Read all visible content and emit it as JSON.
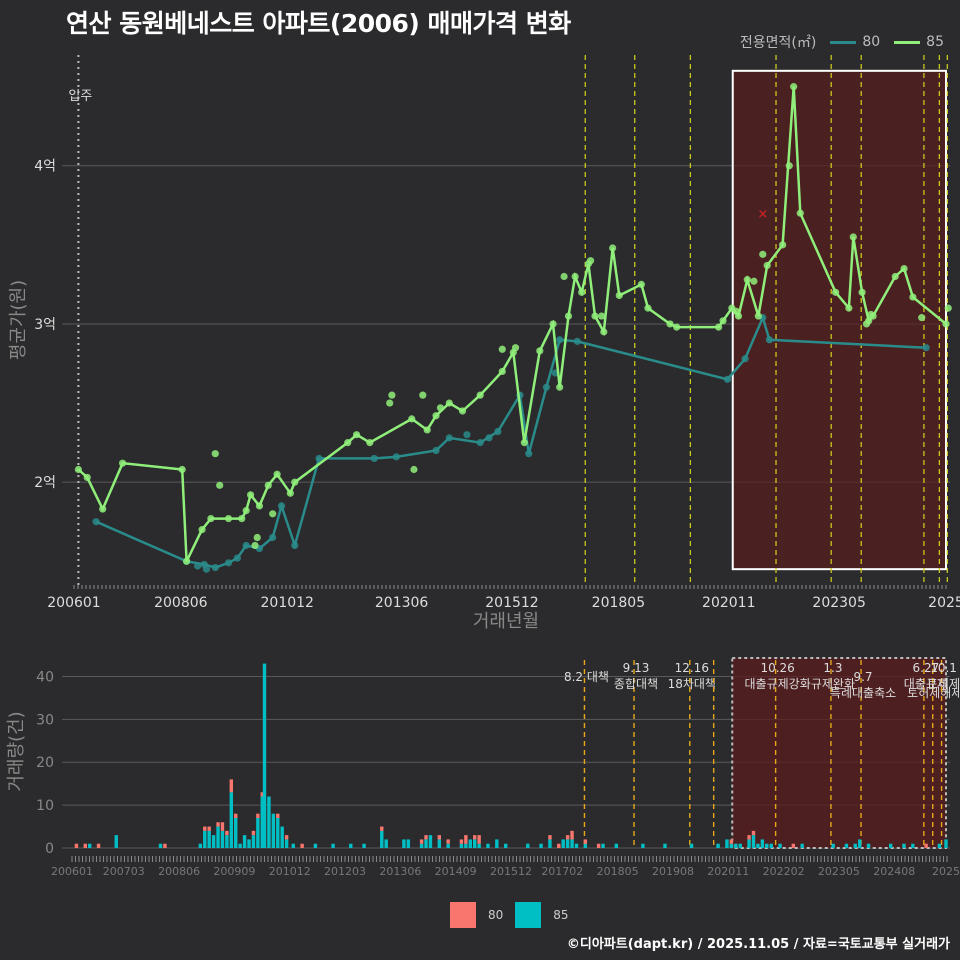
{
  "title": "연산 동원베네스트 아파트(2006) 매매가격 변화",
  "legend": {
    "label": "전용면적(㎡)",
    "items": [
      {
        "name": "80",
        "color": "#2a8b8b"
      },
      {
        "name": "85",
        "color": "#90ee7a"
      }
    ]
  },
  "bar_legend": {
    "items": [
      {
        "name": "80",
        "color": "#f8766d"
      },
      {
        "name": "85",
        "color": "#00bfc4"
      }
    ]
  },
  "footer": "©디아파트(dapt.kr) / 2025.11.05 / 자료=국토교통부 실거래가",
  "chart_data": [
    {
      "type": "line",
      "name": "price",
      "xlabel": "거래년월",
      "ylabel": "평균가(원)",
      "x_range": [
        2006.0,
        2025.75
      ],
      "ylim": [
        1.35,
        4.7
      ],
      "y_ticks": [
        {
          "v": 2,
          "label": "2억"
        },
        {
          "v": 3,
          "label": "3억"
        },
        {
          "v": 4,
          "label": "4억"
        }
      ],
      "x_ticks": [
        {
          "v": 2006.0,
          "label": "200601"
        },
        {
          "v": 2008.42,
          "label": "200806"
        },
        {
          "v": 2010.83,
          "label": "201012"
        },
        {
          "v": 2013.42,
          "label": "201306"
        },
        {
          "v": 2015.92,
          "label": "201512"
        },
        {
          "v": 2018.33,
          "label": "201805"
        },
        {
          "v": 2020.83,
          "label": "202011"
        },
        {
          "v": 2023.33,
          "label": "202305"
        },
        {
          "v": 2025.75,
          "label": "2025"
        }
      ],
      "annotation": {
        "label": "입주",
        "x": 2006.1
      },
      "policy_lines": [
        2017.58,
        2018.7,
        2019.96,
        2021.9,
        2023.15,
        2023.83,
        2025.25,
        2025.6,
        2025.78
      ],
      "highlight_range": [
        2020.92,
        2025.75
      ],
      "highlight_y": [
        1.45,
        4.6
      ],
      "marker": {
        "x": 2021.6,
        "y": 3.7,
        "symbol": "×"
      },
      "series": [
        {
          "name": "80",
          "color": "#2a8b8b",
          "points": [
            [
              2006.5,
              1.75
            ],
            [
              2008.55,
              1.5
            ],
            [
              2008.95,
              1.48
            ],
            [
              2009.2,
              1.46
            ],
            [
              2009.5,
              1.49
            ],
            [
              2009.7,
              1.52
            ],
            [
              2009.9,
              1.6
            ],
            [
              2010.2,
              1.58
            ],
            [
              2010.5,
              1.65
            ],
            [
              2010.7,
              1.85
            ],
            [
              2011.0,
              1.6
            ],
            [
              2011.55,
              2.15
            ],
            [
              2012.8,
              2.15
            ],
            [
              2013.3,
              2.16
            ],
            [
              2014.2,
              2.2
            ],
            [
              2014.5,
              2.28
            ],
            [
              2015.2,
              2.25
            ],
            [
              2015.6,
              2.32
            ],
            [
              2016.1,
              2.55
            ],
            [
              2016.3,
              2.18
            ],
            [
              2016.7,
              2.6
            ],
            [
              2017.0,
              2.9
            ],
            [
              2017.4,
              2.89
            ],
            [
              2020.8,
              2.65
            ],
            [
              2021.2,
              2.78
            ],
            [
              2021.6,
              3.04
            ],
            [
              2021.75,
              2.9
            ],
            [
              2025.3,
              2.85
            ]
          ],
          "scatter": [
            [
              2016.9,
              2.69
            ],
            [
              2015.4,
              2.28
            ],
            [
              2014.9,
              2.3
            ],
            [
              2009.0,
              1.45
            ],
            [
              2008.8,
              1.47
            ]
          ]
        },
        {
          "name": "85",
          "color": "#90ee7a",
          "points": [
            [
              2006.1,
              2.08
            ],
            [
              2006.3,
              2.03
            ],
            [
              2006.65,
              1.83
            ],
            [
              2007.1,
              2.12
            ],
            [
              2008.45,
              2.08
            ],
            [
              2008.55,
              1.5
            ],
            [
              2008.9,
              1.7
            ],
            [
              2009.1,
              1.77
            ],
            [
              2009.5,
              1.77
            ],
            [
              2009.8,
              1.77
            ],
            [
              2009.9,
              1.82
            ],
            [
              2010.0,
              1.92
            ],
            [
              2010.2,
              1.85
            ],
            [
              2010.4,
              1.98
            ],
            [
              2010.6,
              2.05
            ],
            [
              2010.9,
              1.93
            ],
            [
              2011.0,
              2.0
            ],
            [
              2012.2,
              2.25
            ],
            [
              2012.4,
              2.3
            ],
            [
              2012.7,
              2.25
            ],
            [
              2013.65,
              2.4
            ],
            [
              2014.0,
              2.33
            ],
            [
              2014.2,
              2.42
            ],
            [
              2014.5,
              2.5
            ],
            [
              2014.8,
              2.45
            ],
            [
              2015.2,
              2.55
            ],
            [
              2015.7,
              2.7
            ],
            [
              2015.95,
              2.82
            ],
            [
              2016.2,
              2.25
            ],
            [
              2016.55,
              2.83
            ],
            [
              2016.85,
              3.0
            ],
            [
              2017.0,
              2.6
            ],
            [
              2017.2,
              3.05
            ],
            [
              2017.35,
              3.3
            ],
            [
              2017.5,
              3.2
            ],
            [
              2017.65,
              3.38
            ],
            [
              2017.8,
              3.05
            ],
            [
              2018.0,
              2.95
            ],
            [
              2018.2,
              3.48
            ],
            [
              2018.35,
              3.18
            ],
            [
              2018.85,
              3.25
            ],
            [
              2019.0,
              3.1
            ],
            [
              2019.5,
              3.0
            ],
            [
              2019.65,
              2.98
            ],
            [
              2020.6,
              2.98
            ],
            [
              2020.7,
              3.02
            ],
            [
              2020.9,
              3.1
            ],
            [
              2021.05,
              3.05
            ],
            [
              2021.25,
              3.28
            ],
            [
              2021.5,
              3.05
            ],
            [
              2021.7,
              3.37
            ],
            [
              2022.05,
              3.5
            ],
            [
              2022.3,
              4.5
            ],
            [
              2022.45,
              3.7
            ],
            [
              2023.25,
              3.2
            ],
            [
              2023.55,
              3.1
            ],
            [
              2023.65,
              3.55
            ],
            [
              2023.85,
              3.2
            ],
            [
              2024.0,
              3.02
            ],
            [
              2024.1,
              3.05
            ],
            [
              2024.6,
              3.3
            ],
            [
              2024.8,
              3.35
            ],
            [
              2025.0,
              3.17
            ],
            [
              2025.75,
              3.0
            ]
          ],
          "scatter": [
            [
              2009.2,
              2.18
            ],
            [
              2009.3,
              1.98
            ],
            [
              2010.1,
              1.6
            ],
            [
              2010.15,
              1.65
            ],
            [
              2010.5,
              1.8
            ],
            [
              2013.2,
              2.55
            ],
            [
              2013.15,
              2.5
            ],
            [
              2013.9,
              2.55
            ],
            [
              2014.3,
              2.47
            ],
            [
              2013.7,
              2.08
            ],
            [
              2015.7,
              2.84
            ],
            [
              2016.0,
              2.85
            ],
            [
              2017.1,
              3.3
            ],
            [
              2017.7,
              3.4
            ],
            [
              2017.95,
              3.05
            ],
            [
              2021.0,
              3.08
            ],
            [
              2021.4,
              3.27
            ],
            [
              2021.6,
              3.44
            ],
            [
              2022.2,
              4.0
            ],
            [
              2023.95,
              3.0
            ],
            [
              2024.05,
              3.06
            ],
            [
              2025.2,
              3.04
            ],
            [
              2025.8,
              3.1
            ]
          ]
        }
      ]
    },
    {
      "type": "bar",
      "name": "volume",
      "ylabel": "거래량(건)",
      "x_range": [
        2006.0,
        2025.75
      ],
      "ylim": [
        0,
        45
      ],
      "y_ticks": [
        0,
        10,
        20,
        30,
        40
      ],
      "x_ticks": [
        {
          "v": 2006.0,
          "label": "200601"
        },
        {
          "v": 2007.17,
          "label": "200703"
        },
        {
          "v": 2008.42,
          "label": "200806"
        },
        {
          "v": 2009.67,
          "label": "200909"
        },
        {
          "v": 2010.92,
          "label": "201012"
        },
        {
          "v": 2012.17,
          "label": "201203"
        },
        {
          "v": 2013.42,
          "label": "201306"
        },
        {
          "v": 2014.67,
          "label": "201409"
        },
        {
          "v": 2015.92,
          "label": "201512"
        },
        {
          "v": 2017.08,
          "label": "201702"
        },
        {
          "v": 2018.33,
          "label": "201805"
        },
        {
          "v": 2019.58,
          "label": "201908"
        },
        {
          "v": 2020.83,
          "label": "202011"
        },
        {
          "v": 2022.08,
          "label": "202202"
        },
        {
          "v": 2023.33,
          "label": "202305"
        },
        {
          "v": 2024.58,
          "label": "202408"
        },
        {
          "v": 2025.75,
          "label": "2025"
        }
      ],
      "highlight_range": [
        2020.92,
        2025.75
      ],
      "policies": [
        {
          "x": 2017.58,
          "lines": [
            "8.2 대책"
          ],
          "row": 1
        },
        {
          "x": 2018.7,
          "lines": [
            "9.13",
            "종합대책"
          ],
          "row": 0
        },
        {
          "x": 2019.96,
          "lines": [
            "12.16",
            "18차대책"
          ],
          "row": 0
        },
        {
          "x": 2020.5,
          "lines": [],
          "row": 0
        },
        {
          "x": 2021.9,
          "lines": [
            "10.26",
            "대출규제강화"
          ],
          "row": 0
        },
        {
          "x": 2023.15,
          "lines": [
            "1.3",
            "규제완화"
          ],
          "row": 0
        },
        {
          "x": 2023.83,
          "lines": [
            "9.7",
            "특례대출축소"
          ],
          "row": 1
        },
        {
          "x": 2025.25,
          "lines": [
            "6.27",
            "대출규제"
          ],
          "row": 0
        },
        {
          "x": 2025.45,
          "lines": [
            "",
            "토허제해제"
          ],
          "row": 1
        },
        {
          "x": 2025.65,
          "lines": [
            "10.1",
            "토허제"
          ],
          "row": 0
        }
      ],
      "bars": [
        [
          2006.1,
          1,
          0
        ],
        [
          2006.3,
          1,
          0
        ],
        [
          2006.4,
          0,
          1
        ],
        [
          2006.6,
          1,
          0
        ],
        [
          2007.0,
          0,
          3
        ],
        [
          2008.0,
          0,
          1
        ],
        [
          2008.1,
          1,
          0
        ],
        [
          2008.9,
          0,
          1
        ],
        [
          2009.0,
          1,
          4
        ],
        [
          2009.1,
          1,
          4
        ],
        [
          2009.2,
          0,
          3
        ],
        [
          2009.3,
          1,
          5
        ],
        [
          2009.4,
          2,
          4
        ],
        [
          2009.5,
          1,
          3
        ],
        [
          2009.6,
          3,
          13
        ],
        [
          2009.7,
          1,
          7
        ],
        [
          2009.8,
          0,
          1
        ],
        [
          2009.9,
          0,
          3
        ],
        [
          2010.0,
          0,
          2
        ],
        [
          2010.1,
          1,
          3
        ],
        [
          2010.2,
          1,
          7
        ],
        [
          2010.3,
          1,
          12
        ],
        [
          2010.35,
          0,
          43
        ],
        [
          2010.45,
          0,
          12
        ],
        [
          2010.55,
          0,
          8
        ],
        [
          2010.65,
          1,
          7
        ],
        [
          2010.75,
          0,
          5
        ],
        [
          2010.85,
          1,
          2
        ],
        [
          2011.0,
          0,
          1
        ],
        [
          2011.2,
          1,
          0
        ],
        [
          2011.5,
          0,
          1
        ],
        [
          2011.9,
          0,
          1
        ],
        [
          2012.3,
          0,
          1
        ],
        [
          2012.6,
          0,
          1
        ],
        [
          2013.0,
          1,
          4
        ],
        [
          2013.1,
          0,
          2
        ],
        [
          2013.5,
          0,
          2
        ],
        [
          2013.6,
          0,
          2
        ],
        [
          2013.9,
          1,
          1
        ],
        [
          2014.0,
          1,
          2
        ],
        [
          2014.1,
          0,
          3
        ],
        [
          2014.3,
          1,
          2
        ],
        [
          2014.5,
          1,
          1
        ],
        [
          2014.8,
          1,
          1
        ],
        [
          2014.9,
          2,
          1
        ],
        [
          2015.0,
          0,
          2
        ],
        [
          2015.1,
          1,
          2
        ],
        [
          2015.2,
          2,
          1
        ],
        [
          2015.4,
          0,
          1
        ],
        [
          2015.6,
          0,
          2
        ],
        [
          2015.8,
          0,
          1
        ],
        [
          2016.3,
          0,
          1
        ],
        [
          2016.6,
          0,
          1
        ],
        [
          2016.8,
          1,
          2
        ],
        [
          2017.0,
          1,
          0
        ],
        [
          2017.1,
          0,
          2
        ],
        [
          2017.2,
          1,
          2
        ],
        [
          2017.3,
          2,
          2
        ],
        [
          2017.4,
          0,
          1
        ],
        [
          2017.6,
          1,
          1
        ],
        [
          2017.9,
          1,
          0
        ],
        [
          2018.0,
          0,
          1
        ],
        [
          2018.3,
          0,
          1
        ],
        [
          2018.9,
          0,
          1
        ],
        [
          2019.4,
          0,
          1
        ],
        [
          2020.0,
          0,
          1
        ],
        [
          2020.6,
          0,
          1
        ],
        [
          2020.8,
          0,
          2
        ],
        [
          2020.9,
          1,
          1
        ],
        [
          2021.0,
          0,
          1
        ],
        [
          2021.1,
          0,
          1
        ],
        [
          2021.3,
          1,
          2
        ],
        [
          2021.4,
          1,
          3
        ],
        [
          2021.5,
          0,
          1
        ],
        [
          2021.6,
          0,
          2
        ],
        [
          2021.7,
          0,
          1
        ],
        [
          2021.8,
          0,
          1
        ],
        [
          2022.0,
          0,
          1
        ],
        [
          2022.3,
          1,
          0
        ],
        [
          2022.5,
          0,
          1
        ],
        [
          2023.2,
          0,
          1
        ],
        [
          2023.5,
          0,
          1
        ],
        [
          2023.7,
          0,
          1
        ],
        [
          2023.8,
          0,
          2
        ],
        [
          2024.0,
          0,
          1
        ],
        [
          2024.5,
          0,
          1
        ],
        [
          2024.8,
          0,
          1
        ],
        [
          2025.0,
          0,
          1
        ],
        [
          2025.3,
          1,
          0
        ],
        [
          2025.6,
          0,
          1
        ],
        [
          2025.75,
          0,
          2
        ]
      ]
    }
  ]
}
